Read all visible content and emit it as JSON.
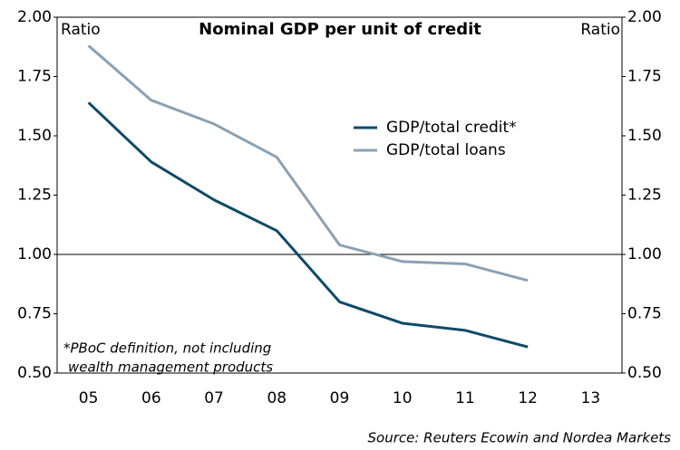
{
  "chart_data": {
    "type": "line",
    "title": "Nominal GDP per unit of credit",
    "ylabel": "Ratio",
    "y2label": "Ratio",
    "categories": [
      "05",
      "06",
      "07",
      "08",
      "09",
      "10",
      "11",
      "12",
      "13"
    ],
    "series": [
      {
        "name": "GDP/total credit*",
        "color": "#0e4a68",
        "values": [
          1.64,
          1.39,
          1.23,
          1.1,
          0.8,
          0.71,
          0.68,
          0.61,
          null
        ]
      },
      {
        "name": "GDP/total loans",
        "color": "#8aa1b5",
        "values": [
          1.88,
          1.65,
          1.55,
          1.41,
          1.04,
          0.97,
          0.96,
          0.89,
          null
        ]
      }
    ],
    "ylim": [
      0.5,
      2.0
    ],
    "yticks": [
      {
        "value": 0.5,
        "label": "0.50"
      },
      {
        "value": 0.75,
        "label": "0.75"
      },
      {
        "value": 1,
        "label": "1.00"
      },
      {
        "value": 1.25,
        "label": "1.25"
      },
      {
        "value": 1.5,
        "label": "1.50"
      },
      {
        "value": 1.75,
        "label": "1.75"
      },
      {
        "value": 2,
        "label": "2.00"
      }
    ],
    "y2lim": [
      0.5,
      2.0
    ],
    "y2ticks": [
      {
        "value": 0.5,
        "label": "0.50"
      },
      {
        "value": 0.75,
        "label": "0.75"
      },
      {
        "value": 1,
        "label": "1.00"
      },
      {
        "value": 1.25,
        "label": "1.25"
      },
      {
        "value": 1.5,
        "label": "1.50"
      },
      {
        "value": 1.75,
        "label": "1.75"
      },
      {
        "value": 2,
        "label": "2.00"
      }
    ],
    "reference_line": 1,
    "annotation": [
      "*PBoC definition, not including",
      "wealth management products"
    ],
    "source": "Source: Reuters Ecowin and Nordea Markets"
  }
}
